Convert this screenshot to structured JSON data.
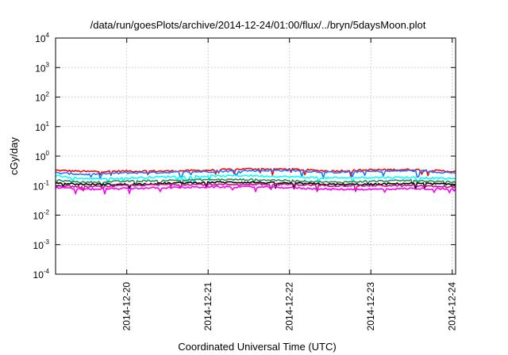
{
  "chart_data": {
    "type": "line",
    "title": "/data/run/goesPlots/archive/2014-12-24/01:00/flux/../bryn/5daysMoon.plot",
    "xlabel": "Coordinated Universal Time (UTC)",
    "ylabel": "cGy/day",
    "yscale": "log",
    "ylim": [
      0.0001,
      10000
    ],
    "xlim": [
      "2014-12-19T03:00",
      "2014-12-24T01:00"
    ],
    "grid": true,
    "legend": "none",
    "y_ticks": [
      {
        "value": 0.0001,
        "base": "10",
        "exp": "-4"
      },
      {
        "value": 0.001,
        "base": "10",
        "exp": "-3"
      },
      {
        "value": 0.01,
        "base": "10",
        "exp": "-2"
      },
      {
        "value": 0.1,
        "base": "10",
        "exp": "-1"
      },
      {
        "value": 1,
        "base": "10",
        "exp": "0"
      },
      {
        "value": 10,
        "base": "10",
        "exp": "1"
      },
      {
        "value": 100,
        "base": "10",
        "exp": "2"
      },
      {
        "value": 1000,
        "base": "10",
        "exp": "3"
      },
      {
        "value": 10000,
        "base": "10",
        "exp": "4"
      }
    ],
    "x_ticks": [
      {
        "value": "2014-12-20T00:00",
        "label": "2014-12-20"
      },
      {
        "value": "2014-12-21T00:00",
        "label": "2014-12-21"
      },
      {
        "value": "2014-12-22T00:00",
        "label": "2014-12-22"
      },
      {
        "value": "2014-12-23T00:00",
        "label": "2014-12-23"
      },
      {
        "value": "2014-12-24T00:00",
        "label": "2014-12-24"
      }
    ],
    "x": [
      "2014-12-19T03:00",
      "2014-12-19T12:00",
      "2014-12-20T00:00",
      "2014-12-20T12:00",
      "2014-12-21T00:00",
      "2014-12-21T12:00",
      "2014-12-22T00:00",
      "2014-12-22T12:00",
      "2014-12-23T00:00",
      "2014-12-23T12:00",
      "2014-12-24T01:00"
    ],
    "series": [
      {
        "color": "#ff0000",
        "values": [
          0.33,
          0.3,
          0.31,
          0.31,
          0.33,
          0.37,
          0.36,
          0.31,
          0.34,
          0.35,
          0.3
        ]
      },
      {
        "color": "#1f77ff",
        "values": [
          0.27,
          0.24,
          0.27,
          0.28,
          0.3,
          0.32,
          0.33,
          0.28,
          0.3,
          0.32,
          0.27
        ]
      },
      {
        "color": "#00ffff",
        "values": [
          0.21,
          0.17,
          0.18,
          0.2,
          0.21,
          0.22,
          0.2,
          0.18,
          0.19,
          0.19,
          0.17
        ]
      },
      {
        "color": "#2e8b57",
        "values": [
          0.15,
          0.13,
          0.14,
          0.15,
          0.16,
          0.16,
          0.15,
          0.13,
          0.14,
          0.15,
          0.13
        ]
      },
      {
        "color": "#000000",
        "values": [
          0.12,
          0.11,
          0.11,
          0.12,
          0.13,
          0.13,
          0.12,
          0.11,
          0.11,
          0.12,
          0.11
        ]
      },
      {
        "color": "#c71585",
        "values": [
          0.1,
          0.09,
          0.1,
          0.11,
          0.11,
          0.11,
          0.11,
          0.1,
          0.1,
          0.1,
          0.09
        ]
      },
      {
        "color": "#ff00ff",
        "values": [
          0.085,
          0.075,
          0.08,
          0.085,
          0.09,
          0.09,
          0.085,
          0.075,
          0.075,
          0.08,
          0.075
        ]
      }
    ]
  }
}
